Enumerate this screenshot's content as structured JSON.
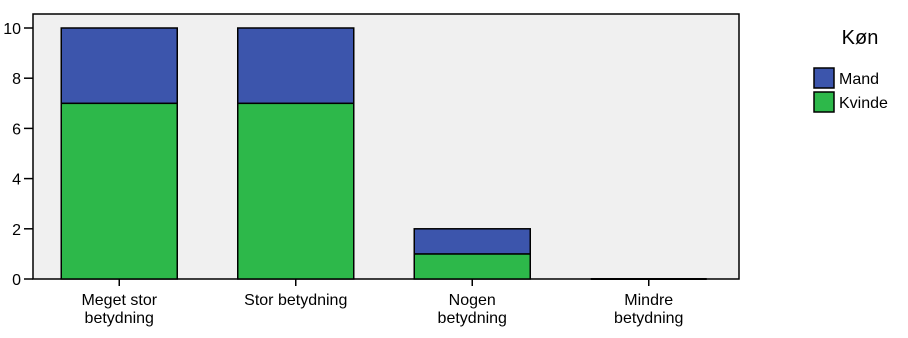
{
  "chart_data": {
    "type": "bar",
    "stacked": true,
    "categories": [
      [
        "Meget stor",
        "betydning"
      ],
      [
        "Stor betydning"
      ],
      [
        "Nogen",
        "betydning"
      ],
      [
        "Mindre",
        "betydning"
      ]
    ],
    "series": [
      {
        "name": "Kvinde",
        "values": [
          7,
          7,
          1,
          0
        ],
        "color": "#2db84a"
      },
      {
        "name": "Mand",
        "values": [
          3,
          3,
          1,
          0
        ],
        "color": "#3c55ac"
      }
    ],
    "ylim": [
      0,
      10
    ],
    "yticks": [
      "0",
      "2",
      "4",
      "6",
      "8",
      "10"
    ],
    "grid": false,
    "plot_background": "#f0f0f0",
    "legend": {
      "title": "Køn",
      "placement": "top-right",
      "order": [
        "Mand",
        "Kvinde"
      ]
    }
  }
}
